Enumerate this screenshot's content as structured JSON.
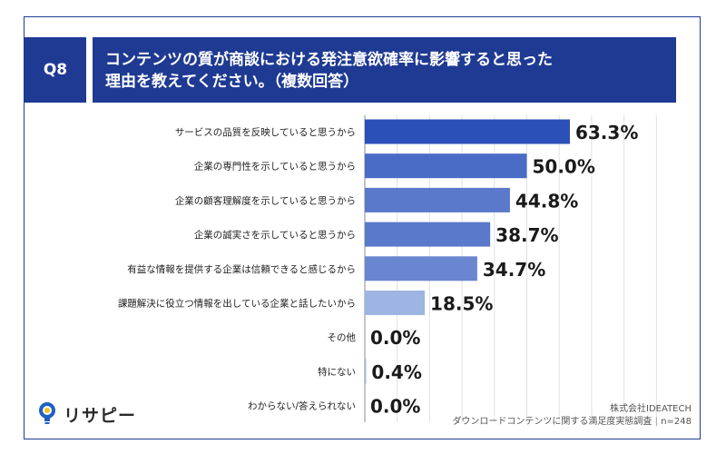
{
  "question": {
    "badge": "Q8",
    "title_line1": "コンテンツの質が商談における発注意欲確率に影響すると思った",
    "title_line2": "理由を教えてください。（複数回答）"
  },
  "chart_data": {
    "type": "bar",
    "orientation": "horizontal",
    "categories": [
      "サービスの品質を反映していると思うから",
      "企業の専門性を示していると思うから",
      "企業の顧客理解度を示していると思うから",
      "企業の誠実さを示していると思うから",
      "有益な情報を提供する企業は信頼できると感じるから",
      "課題解決に役立つ情報を出している企業と話したいから",
      "その他",
      "特にない",
      "わからない/答えられない"
    ],
    "values": [
      63.3,
      50.0,
      44.8,
      38.7,
      34.7,
      18.5,
      0.0,
      0.4,
      0.0
    ],
    "value_labels": [
      "63.3%",
      "50.0%",
      "44.8%",
      "38.7%",
      "34.7%",
      "18.5%",
      "0.0%",
      "0.4%",
      "0.0%"
    ],
    "xlim": [
      0,
      100
    ],
    "bar_colors": [
      "#2b50b8",
      "#4a6cc6",
      "#5a79cb",
      "#5a79cb",
      "#6a86d0",
      "#9eb4e2",
      "#9eb4e2",
      "#9eb4e2",
      "#9eb4e2"
    ],
    "grid": true
  },
  "footer": {
    "company": "株式会社IDEATECH",
    "survey": "ダウンロードコンテンツに関する満足度実態調査",
    "n": "n=248"
  },
  "logo": {
    "text": "リサピー",
    "icon": "lightbulb-icon"
  }
}
